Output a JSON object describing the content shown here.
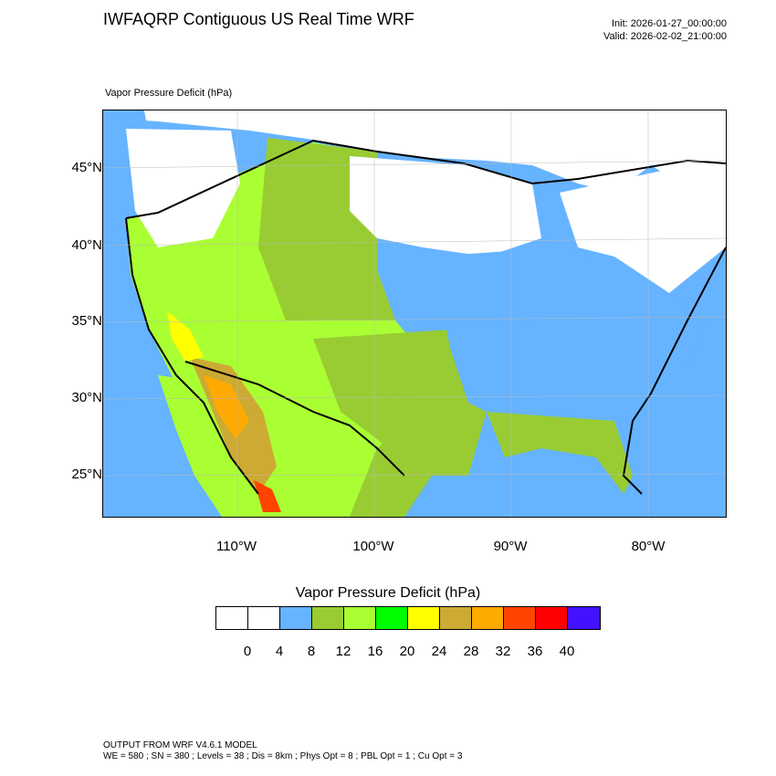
{
  "header": {
    "title": "IWFAQRP Contiguous US Real Time WRF",
    "init": "Init: 2026-01-27_00:00:00",
    "valid": "Valid: 2026-02-02_21:00:00"
  },
  "map": {
    "field_label": "Vapor Pressure Deficit   (hPa)",
    "lat_labels": [
      "45°N",
      "40°N",
      "35°N",
      "30°N",
      "25°N"
    ],
    "lon_labels": [
      "110°W",
      "100°W",
      "90°W",
      "80°W"
    ],
    "ocean_color": "#66b3ff",
    "boundary_color": "#000000"
  },
  "legend": {
    "title": "Vapor Pressure Deficit  (hPa)",
    "colors": [
      "#ffffff",
      "#ffffff",
      "#66b3ff",
      "#99cc33",
      "#aaff33",
      "#00ff00",
      "#ffff00",
      "#ccaa33",
      "#ffaa00",
      "#ff4400",
      "#ff0000",
      "#4411ff"
    ],
    "ticks": [
      "0",
      "4",
      "8",
      "12",
      "16",
      "20",
      "24",
      "28",
      "32",
      "36",
      "40"
    ]
  },
  "footer": {
    "line1": "OUTPUT FROM WRF V4.6.1 MODEL",
    "line2": "WE = 580 ; SN = 380 ; Levels = 38 ; Dis = 8km ; Phys Opt = 8 ; PBL Opt = 1 ; Cu Opt = 3"
  }
}
